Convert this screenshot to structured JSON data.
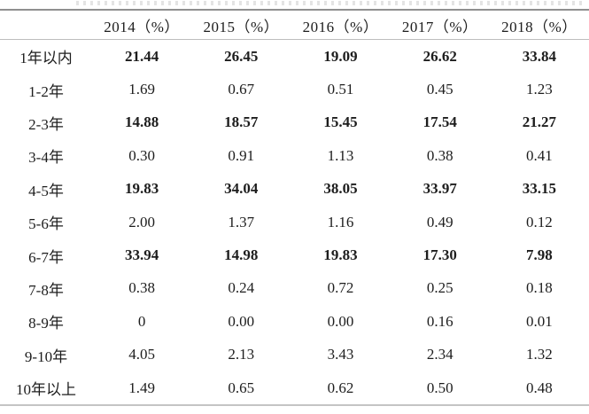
{
  "table": {
    "columns": [
      "2014（%）",
      "2015（%）",
      "2016（%）",
      "2017（%）",
      "2018（%）"
    ],
    "rows": [
      {
        "label": "1年以内",
        "values": [
          "21.44",
          "26.45",
          "19.09",
          "26.62",
          "33.84"
        ],
        "bold": true
      },
      {
        "label": "1-2年",
        "values": [
          "1.69",
          "0.67",
          "0.51",
          "0.45",
          "1.23"
        ],
        "bold": false
      },
      {
        "label": "2-3年",
        "values": [
          "14.88",
          "18.57",
          "15.45",
          "17.54",
          "21.27"
        ],
        "bold": true
      },
      {
        "label": "3-4年",
        "values": [
          "0.30",
          "0.91",
          "1.13",
          "0.38",
          "0.41"
        ],
        "bold": false
      },
      {
        "label": "4-5年",
        "values": [
          "19.83",
          "34.04",
          "38.05",
          "33.97",
          "33.15"
        ],
        "bold": true
      },
      {
        "label": "5-6年",
        "values": [
          "2.00",
          "1.37",
          "1.16",
          "0.49",
          "0.12"
        ],
        "bold": false
      },
      {
        "label": "6-7年",
        "values": [
          "33.94",
          "14.98",
          "19.83",
          "17.30",
          "7.98"
        ],
        "bold": true
      },
      {
        "label": "7-8年",
        "values": [
          "0.38",
          "0.24",
          "0.72",
          "0.25",
          "0.18"
        ],
        "bold": false
      },
      {
        "label": "8-9年",
        "values": [
          "0",
          "0.00",
          "0.00",
          "0.16",
          "0.01"
        ],
        "bold": false
      },
      {
        "label": "9-10年",
        "values": [
          "4.05",
          "2.13",
          "3.43",
          "2.34",
          "1.32"
        ],
        "bold": false
      },
      {
        "label": "10年以上",
        "values": [
          "1.49",
          "0.65",
          "0.62",
          "0.50",
          "0.48"
        ],
        "bold": false
      }
    ]
  },
  "colors": {
    "text": "#1d1d1d",
    "rule_top": "#8f8f8f",
    "rule_header": "#bdbdbd",
    "rule_bottom": "#c4c4c4",
    "background": "#ffffff"
  },
  "chart_data": {
    "type": "table",
    "title": "",
    "categories": [
      "1年以内",
      "1-2年",
      "2-3年",
      "3-4年",
      "4-5年",
      "5-6年",
      "6-7年",
      "7-8年",
      "8-9年",
      "9-10年",
      "10年以上"
    ],
    "series": [
      {
        "name": "2014（%）",
        "values": [
          21.44,
          1.69,
          14.88,
          0.3,
          19.83,
          2.0,
          33.94,
          0.38,
          0,
          4.05,
          1.49
        ]
      },
      {
        "name": "2015（%）",
        "values": [
          26.45,
          0.67,
          18.57,
          0.91,
          34.04,
          1.37,
          14.98,
          0.24,
          0.0,
          2.13,
          0.65
        ]
      },
      {
        "name": "2016（%）",
        "values": [
          19.09,
          0.51,
          15.45,
          1.13,
          38.05,
          1.16,
          19.83,
          0.72,
          0.0,
          3.43,
          0.62
        ]
      },
      {
        "name": "2017（%）",
        "values": [
          26.62,
          0.45,
          17.54,
          0.38,
          33.97,
          0.49,
          17.3,
          0.25,
          0.16,
          2.34,
          0.5
        ]
      },
      {
        "name": "2018（%）",
        "values": [
          33.84,
          1.23,
          21.27,
          0.41,
          33.15,
          0.12,
          7.98,
          0.18,
          0.01,
          1.32,
          0.48
        ]
      }
    ]
  }
}
